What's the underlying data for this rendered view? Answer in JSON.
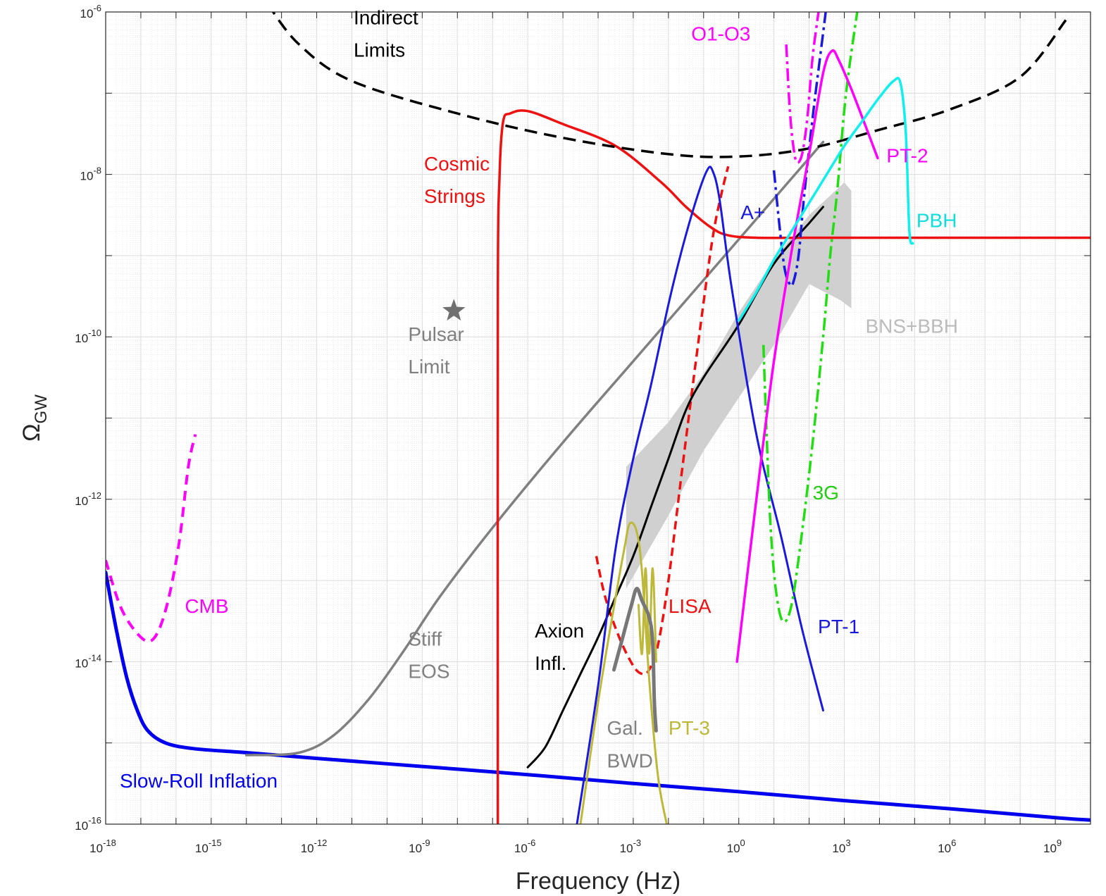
{
  "chart_data": {
    "type": "line",
    "xlabel": "Frequency (Hz)",
    "ylabel": "Ω_GW",
    "xscale": "log",
    "yscale": "log",
    "xlim": [
      1e-18,
      10000000000.0
    ],
    "ylim": [
      1e-16,
      1e-06
    ],
    "grid": true,
    "legend": "none",
    "x_ticks": [
      {
        "exp": "-18",
        "value": -18
      },
      {
        "exp": "-15",
        "value": -15
      },
      {
        "exp": "-12",
        "value": -12
      },
      {
        "exp": "-9",
        "value": -9
      },
      {
        "exp": "-6",
        "value": -6
      },
      {
        "exp": "-3",
        "value": -3
      },
      {
        "exp": "0",
        "value": 0
      },
      {
        "exp": "3",
        "value": 3
      },
      {
        "exp": "6",
        "value": 6
      },
      {
        "exp": "9",
        "value": 9
      }
    ],
    "y_ticks": [
      {
        "exp": "-16",
        "value": -16
      },
      {
        "exp": "-14",
        "value": -14
      },
      {
        "exp": "-12",
        "value": -12
      },
      {
        "exp": "-10",
        "value": -10
      },
      {
        "exp": "-8",
        "value": -8
      },
      {
        "exp": "-6",
        "value": -6
      }
    ],
    "tick_base": "10",
    "series": [
      {
        "label": "Slow-Roll Inflation",
        "color": "#0000ee",
        "dash": "none",
        "width": 5,
        "points": [
          [
            -18,
            -12.9
          ],
          [
            -17.7,
            -13.6
          ],
          [
            -17.4,
            -14.2
          ],
          [
            -17.1,
            -14.6
          ],
          [
            -16.8,
            -14.85
          ],
          [
            -16.3,
            -15.0
          ],
          [
            -15.5,
            -15.07
          ],
          [
            -14,
            -15.12
          ],
          [
            -12,
            -15.19
          ],
          [
            -9,
            -15.29
          ],
          [
            -6,
            -15.39
          ],
          [
            -3,
            -15.5
          ],
          [
            0,
            -15.6
          ],
          [
            3,
            -15.71
          ],
          [
            6,
            -15.81
          ],
          [
            9,
            -15.92
          ],
          [
            10,
            -15.95
          ]
        ]
      },
      {
        "label": "CMB",
        "color": "#ff00ff",
        "dash": "14,9",
        "width": 4,
        "points": [
          [
            -18,
            -12.75
          ],
          [
            -17.6,
            -13.3
          ],
          [
            -17.2,
            -13.6
          ],
          [
            -16.8,
            -13.75
          ],
          [
            -16.5,
            -13.62
          ],
          [
            -16.2,
            -13.2
          ],
          [
            -15.9,
            -12.5
          ],
          [
            -15.65,
            -11.6
          ],
          [
            -15.45,
            -11.2
          ]
        ]
      },
      {
        "label": "Stiff EOS",
        "color": "#808080",
        "dash": "none",
        "width": 3.5,
        "points": [
          [
            -14,
            -15.15
          ],
          [
            -12.5,
            -15.12
          ],
          [
            -11.5,
            -14.9
          ],
          [
            -10.5,
            -14.45
          ],
          [
            -9.5,
            -13.85
          ],
          [
            -8.5,
            -13.2
          ],
          [
            -7,
            -12.35
          ],
          [
            -5,
            -11.3
          ],
          [
            -3,
            -10.3
          ],
          [
            -1,
            -9.3
          ],
          [
            1,
            -8.3
          ],
          [
            2.4,
            -7.6
          ]
        ]
      },
      {
        "label": "Pulsar Limit",
        "color": "#707070",
        "marker": "star",
        "points": [
          [
            -8.1,
            -9.68
          ]
        ]
      },
      {
        "label": "Cosmic Strings",
        "color": "#ee1111",
        "dash": "none",
        "width": 3.5,
        "points": [
          [
            -6.85,
            -16
          ],
          [
            -6.85,
            -9.5
          ],
          [
            -6.8,
            -8.0
          ],
          [
            -6.7,
            -7.35
          ],
          [
            -6.5,
            -7.25
          ],
          [
            -6.0,
            -7.22
          ],
          [
            -5.0,
            -7.38
          ],
          [
            -3.5,
            -7.65
          ],
          [
            -2.2,
            -8.1
          ],
          [
            -1.5,
            -8.4
          ],
          [
            -0.8,
            -8.65
          ],
          [
            -0.3,
            -8.75
          ],
          [
            0.5,
            -8.78
          ],
          [
            2,
            -8.78
          ],
          [
            5,
            -8.78
          ],
          [
            10,
            -8.78
          ]
        ]
      },
      {
        "label": "Indirect Limits",
        "color": "#000000",
        "dash": "18,10",
        "width": 3.5,
        "points": [
          [
            -13.4,
            -5.9
          ],
          [
            -12.5,
            -6.4
          ],
          [
            -11,
            -6.85
          ],
          [
            -8,
            -7.25
          ],
          [
            -5,
            -7.55
          ],
          [
            -2,
            -7.75
          ],
          [
            0,
            -7.78
          ],
          [
            2,
            -7.68
          ],
          [
            4,
            -7.45
          ],
          [
            6,
            -7.2
          ],
          [
            8,
            -6.8
          ],
          [
            9.3,
            -6.1
          ]
        ]
      },
      {
        "label": "LISA",
        "color": "#ee1111",
        "dash": "12,7",
        "width": 3.5,
        "points": [
          [
            -4.05,
            -12.7
          ],
          [
            -3.8,
            -13.2
          ],
          [
            -3.4,
            -13.7
          ],
          [
            -3.0,
            -14.05
          ],
          [
            -2.75,
            -14.15
          ],
          [
            -2.55,
            -14.1
          ],
          [
            -2.3,
            -13.8
          ],
          [
            -2.0,
            -13.0
          ],
          [
            -1.6,
            -11.6
          ],
          [
            -1.1,
            -9.9
          ],
          [
            -0.75,
            -8.8
          ],
          [
            -0.5,
            -8.25
          ],
          [
            -0.3,
            -7.9
          ]
        ]
      },
      {
        "label": "Axion Infl.",
        "color": "#000000",
        "dash": "none",
        "width": 3,
        "points": [
          [
            -6,
            -15.3
          ],
          [
            -5.5,
            -15.05
          ],
          [
            -5,
            -14.6
          ],
          [
            -4.5,
            -14.15
          ],
          [
            -4,
            -13.7
          ],
          [
            -3.5,
            -13.2
          ],
          [
            -3,
            -12.7
          ],
          [
            -2.5,
            -12.1
          ],
          [
            -2,
            -11.5
          ],
          [
            -1.5,
            -10.9
          ],
          [
            -1,
            -10.5
          ],
          [
            0,
            -9.85
          ],
          [
            1,
            -9.1
          ],
          [
            2,
            -8.6
          ],
          [
            2.4,
            -8.4
          ]
        ]
      },
      {
        "label": "PT-1",
        "color": "#1a1add",
        "dash": "none",
        "width": 3,
        "points": [
          [
            -4.6,
            -16
          ],
          [
            -4.0,
            -14.3
          ],
          [
            -3.5,
            -12.6
          ],
          [
            -3.0,
            -11.5
          ],
          [
            -2.5,
            -10.6
          ],
          [
            -2.0,
            -9.6
          ],
          [
            -1.6,
            -8.9
          ],
          [
            -1.2,
            -8.3
          ],
          [
            -0.9,
            -7.95
          ],
          [
            -0.75,
            -7.95
          ],
          [
            -0.55,
            -8.3
          ],
          [
            -0.2,
            -9.4
          ],
          [
            0.5,
            -11.2
          ],
          [
            1.2,
            -12.45
          ],
          [
            1.8,
            -13.6
          ],
          [
            2.4,
            -14.6
          ]
        ]
      },
      {
        "label": "PT-3",
        "color": "#bdb83a",
        "dash": "none",
        "width": 3,
        "points": [
          [
            -4.5,
            -16
          ],
          [
            -4.0,
            -14.5
          ],
          [
            -3.5,
            -13.2
          ],
          [
            -3.25,
            -12.6
          ],
          [
            -3.1,
            -12.3
          ],
          [
            -2.9,
            -12.4
          ],
          [
            -2.75,
            -12.9
          ],
          [
            -2.55,
            -14.2
          ],
          [
            -2.3,
            -15.4
          ],
          [
            -2.05,
            -16
          ]
        ]
      },
      {
        "label": "PT-3-spikes",
        "color": "#bdb83a",
        "dash": "none",
        "width": 3,
        "points": [
          [
            -2.85,
            -13.3
          ],
          [
            -2.75,
            -13.9
          ],
          [
            -2.65,
            -12.85
          ],
          [
            -2.55,
            -13.9
          ],
          [
            -2.45,
            -12.85
          ],
          [
            -2.35,
            -14.0
          ]
        ]
      },
      {
        "label": "Gal. BWD",
        "color": "#777777",
        "dash": "none",
        "width": 5,
        "points": [
          [
            -3.55,
            -14.1
          ],
          [
            -3.3,
            -13.7
          ],
          [
            -3.05,
            -13.3
          ],
          [
            -2.9,
            -13.1
          ],
          [
            -2.75,
            -13.25
          ],
          [
            -2.55,
            -13.45
          ],
          [
            -2.45,
            -13.75
          ],
          [
            -2.4,
            -14.5
          ],
          [
            -2.35,
            -14.85
          ]
        ]
      },
      {
        "label": "A+",
        "color": "#1a1add",
        "dash": "18,6,4,6",
        "width": 3.5,
        "points": [
          [
            1.0,
            -7.95
          ],
          [
            1.15,
            -8.6
          ],
          [
            1.3,
            -9.15
          ],
          [
            1.45,
            -9.35
          ],
          [
            1.55,
            -9.33
          ],
          [
            1.7,
            -9.0
          ],
          [
            1.85,
            -8.3
          ],
          [
            2.1,
            -7.3
          ],
          [
            2.3,
            -6.6
          ],
          [
            2.5,
            -5.9
          ]
        ]
      },
      {
        "label": "O1-O3",
        "color": "#ff00ff",
        "dash": "18,6,4,6",
        "width": 3.5,
        "points": [
          [
            1.35,
            -6.4
          ],
          [
            1.45,
            -7.2
          ],
          [
            1.55,
            -7.65
          ],
          [
            1.65,
            -7.85
          ],
          [
            1.8,
            -7.75
          ],
          [
            1.95,
            -7.3
          ],
          [
            2.1,
            -6.55
          ],
          [
            2.3,
            -5.9
          ]
        ]
      },
      {
        "label": "3G",
        "color": "#22dd11",
        "dash": "18,6,4,6",
        "width": 3.5,
        "points": [
          [
            0.7,
            -10.1
          ],
          [
            0.8,
            -11.3
          ],
          [
            0.9,
            -12.3
          ],
          [
            1.05,
            -13.1
          ],
          [
            1.25,
            -13.5
          ],
          [
            1.5,
            -13.3
          ],
          [
            1.8,
            -12.4
          ],
          [
            2.1,
            -11.3
          ],
          [
            2.4,
            -10.0
          ],
          [
            2.6,
            -9.0
          ],
          [
            2.8,
            -8.2
          ],
          [
            3.05,
            -7.0
          ],
          [
            3.4,
            -5.9
          ]
        ]
      },
      {
        "label": "PT-2",
        "color": "#ff00ff",
        "dash": "none",
        "width": 3.5,
        "points": [
          [
            -0.05,
            -14.0
          ],
          [
            0.5,
            -12.0
          ],
          [
            1.0,
            -10.3
          ],
          [
            1.5,
            -8.95
          ],
          [
            2.0,
            -7.75
          ],
          [
            2.4,
            -6.75
          ],
          [
            2.65,
            -6.48
          ],
          [
            2.85,
            -6.6
          ],
          [
            3.2,
            -6.95
          ],
          [
            3.6,
            -7.4
          ],
          [
            3.95,
            -7.8
          ]
        ]
      },
      {
        "label": "PBH",
        "color": "#11eeee",
        "dash": "none",
        "width": 3.5,
        "points": [
          [
            0.0,
            -9.8
          ],
          [
            0.5,
            -9.45
          ],
          [
            1.0,
            -9.05
          ],
          [
            1.5,
            -8.7
          ],
          [
            2.0,
            -8.35
          ],
          [
            2.5,
            -8.0
          ],
          [
            3.0,
            -7.65
          ],
          [
            3.5,
            -7.35
          ],
          [
            4.0,
            -7.05
          ],
          [
            4.4,
            -6.85
          ],
          [
            4.6,
            -6.88
          ],
          [
            4.75,
            -7.5
          ],
          [
            4.85,
            -8.7
          ],
          [
            4.95,
            -8.85
          ]
        ]
      }
    ],
    "bands": [
      {
        "label": "BNS+BBH",
        "color": "#d0d0d0",
        "upper": [
          [
            -3.2,
            -11.6
          ],
          [
            -2,
            -11.05
          ],
          [
            -1,
            -10.45
          ],
          [
            0,
            -9.7
          ],
          [
            1,
            -9.05
          ],
          [
            2,
            -8.5
          ],
          [
            3,
            -8.1
          ],
          [
            3.2,
            -8.2
          ],
          [
            3.2,
            -9.65
          ]
        ],
        "lower": [
          [
            -3.2,
            -13.1
          ],
          [
            -2,
            -12.2
          ],
          [
            -1,
            -11.4
          ],
          [
            0,
            -10.75
          ],
          [
            1,
            -10.1
          ],
          [
            2,
            -9.35
          ],
          [
            2.9,
            -9.55
          ],
          [
            3.2,
            -9.65
          ]
        ]
      }
    ],
    "annotations": [
      {
        "text": "Indirect",
        "x": -10.95,
        "y": -6.15,
        "color": "#000000"
      },
      {
        "text": "Limits",
        "x": -10.95,
        "y": -6.55,
        "color": "#000000"
      },
      {
        "text": "Cosmic",
        "x": -8.95,
        "y": -7.95,
        "color": "#ee1111"
      },
      {
        "text": "Strings",
        "x": -8.95,
        "y": -8.35,
        "color": "#ee1111"
      },
      {
        "text": "Pulsar",
        "x": -9.4,
        "y": -10.05,
        "color": "#808080"
      },
      {
        "text": "Limit",
        "x": -9.4,
        "y": -10.45,
        "color": "#808080"
      },
      {
        "text": "Stiff",
        "x": -9.4,
        "y": -13.8,
        "color": "#808080"
      },
      {
        "text": "EOS",
        "x": -9.4,
        "y": -14.2,
        "color": "#808080"
      },
      {
        "text": "Axion",
        "x": -5.8,
        "y": -13.7,
        "color": "#000000"
      },
      {
        "text": "Infl.",
        "x": -5.8,
        "y": -14.1,
        "color": "#000000"
      },
      {
        "text": "Gal.",
        "x": -3.75,
        "y": -14.9,
        "color": "#808080"
      },
      {
        "text": "BWD",
        "x": -3.75,
        "y": -15.3,
        "color": "#808080"
      },
      {
        "text": "PT-3",
        "x": -2.0,
        "y": -14.9,
        "color": "#bdb83a"
      },
      {
        "text": "LISA",
        "x": -2.0,
        "y": -13.4,
        "color": "#ee1111"
      },
      {
        "text": "CMB",
        "x": -15.75,
        "y": -13.4,
        "color": "#ff00ff"
      },
      {
        "text": "Slow-Roll Inflation",
        "x": -17.6,
        "y": -15.55,
        "color": "#0000ee"
      },
      {
        "text": "O1-O3",
        "x": -1.35,
        "y": -6.35,
        "color": "#ff00ff"
      },
      {
        "text": "PT-2",
        "x": 4.2,
        "y": -7.85,
        "color": "#ff00ff"
      },
      {
        "text": "A+",
        "x": 0.05,
        "y": -8.55,
        "color": "#1a1add"
      },
      {
        "text": "PBH",
        "x": 5.05,
        "y": -8.65,
        "color": "#11dddd"
      },
      {
        "text": "BNS+BBH",
        "x": 3.6,
        "y": -9.95,
        "color": "#bbbbbb"
      },
      {
        "text": "3G",
        "x": 2.1,
        "y": -12.0,
        "color": "#22cc11"
      },
      {
        "text": "PT-1",
        "x": 2.25,
        "y": -13.65,
        "color": "#1a1add"
      }
    ]
  }
}
